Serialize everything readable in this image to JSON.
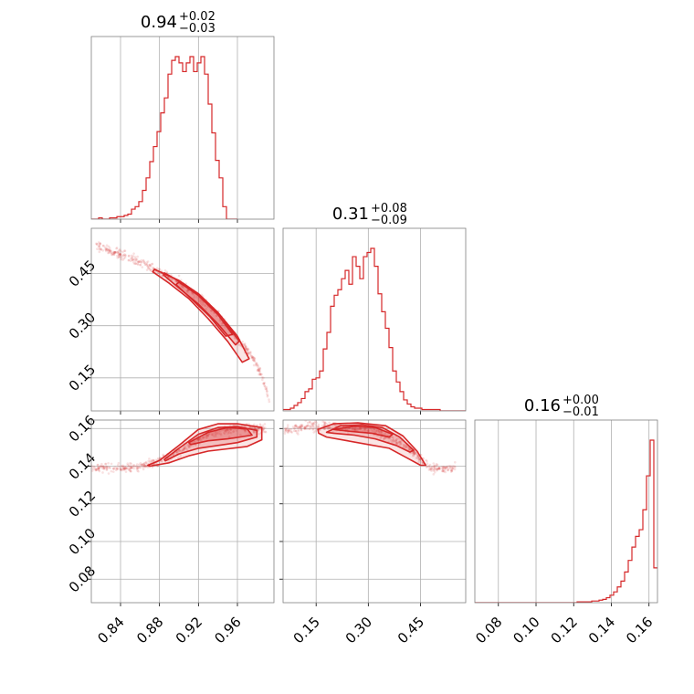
{
  "colors": {
    "series": "#d62728",
    "grid": "#b0b0b0",
    "frame": "#808080"
  },
  "chart_data": {
    "type": "corner",
    "grid": true,
    "parameters": [
      {
        "title": {
          "value": "0.94",
          "plus": "+0.02",
          "minus": "−0.03"
        },
        "range": [
          0.81,
          0.9975
        ],
        "ticks": [
          0.84,
          0.88,
          0.92,
          0.96
        ],
        "tick_labels": [
          "0.84",
          "0.88",
          "0.92",
          "0.96"
        ],
        "histogram": {
          "bin_start": 0.81,
          "bin_width": 0.00375,
          "counts": [
            0,
            0,
            1,
            0,
            0,
            1,
            1,
            2,
            2,
            3,
            4,
            8,
            10,
            14,
            23,
            33,
            46,
            58,
            70,
            85,
            97,
            116,
            127,
            130,
            125,
            118,
            125,
            130,
            118,
            125,
            130,
            116,
            92,
            69,
            47,
            33,
            10,
            0,
            0,
            0
          ]
        }
      },
      {
        "title": {
          "value": "0.31",
          "plus": "+0.08",
          "minus": "−0.09"
        },
        "range": [
          0.055,
          0.58
        ],
        "ticks": [
          0.15,
          0.3,
          0.45
        ],
        "tick_labels": [
          "0.15",
          "0.30",
          "0.45"
        ],
        "histogram": {
          "bin_start": 0.055,
          "bin_width": 0.0105,
          "counts": [
            1,
            1,
            2,
            4,
            6,
            9,
            14,
            16,
            23,
            24,
            29,
            45,
            57,
            76,
            84,
            88,
            96,
            102,
            92,
            112,
            105,
            96,
            112,
            115,
            118,
            105,
            85,
            72,
            60,
            46,
            29,
            21,
            14,
            8,
            5,
            3,
            2,
            2,
            1,
            1,
            1,
            1,
            1,
            0,
            0,
            0,
            0,
            0,
            0,
            0
          ]
        }
      },
      {
        "title": {
          "value": "0.16",
          "plus": "+0.00",
          "minus": "−0.01"
        },
        "range": [
          0.0675,
          0.1645
        ],
        "ticks": [
          0.08,
          0.1,
          0.12,
          0.14,
          0.16
        ],
        "tick_labels": [
          "0.08",
          "0.10",
          "0.12",
          "0.14",
          "0.16"
        ],
        "histogram": {
          "bin_start": 0.0675,
          "bin_width": 0.00194,
          "counts": [
            0,
            0,
            0,
            0,
            0,
            0,
            0,
            0,
            0,
            0,
            0,
            0,
            0,
            0,
            0,
            0,
            0,
            0,
            0,
            0,
            0,
            0,
            0,
            0,
            0,
            0,
            0,
            0,
            1,
            1,
            1,
            1,
            2,
            2,
            3,
            4,
            6,
            9,
            13,
            19,
            26,
            37,
            51,
            67,
            80,
            88,
            112,
            153,
            196,
            42
          ]
        }
      }
    ],
    "scatter_2d": [
      {
        "x_param": 0,
        "y_param": 1,
        "curve": [
          [
            0.815,
            0.53
          ],
          [
            0.85,
            0.495
          ],
          [
            0.88,
            0.455
          ],
          [
            0.9,
            0.425
          ],
          [
            0.92,
            0.385
          ],
          [
            0.94,
            0.33
          ],
          [
            0.96,
            0.265
          ],
          [
            0.975,
            0.21
          ],
          [
            0.985,
            0.155
          ],
          [
            0.993,
            0.08
          ]
        ],
        "contours": [
          [
            [
              0.875,
              0.462
            ],
            [
              0.9,
              0.43
            ],
            [
              0.92,
              0.392
            ],
            [
              0.94,
              0.338
            ],
            [
              0.96,
              0.27
            ],
            [
              0.972,
              0.205
            ],
            [
              0.965,
              0.195
            ],
            [
              0.95,
              0.255
            ],
            [
              0.93,
              0.32
            ],
            [
              0.91,
              0.378
            ],
            [
              0.89,
              0.422
            ],
            [
              0.873,
              0.455
            ]
          ],
          [
            [
              0.885,
              0.452
            ],
            [
              0.905,
              0.42
            ],
            [
              0.925,
              0.378
            ],
            [
              0.945,
              0.32
            ],
            [
              0.962,
              0.255
            ],
            [
              0.958,
              0.245
            ],
            [
              0.94,
              0.305
            ],
            [
              0.92,
              0.362
            ],
            [
              0.9,
              0.408
            ],
            [
              0.884,
              0.446
            ]
          ],
          [
            [
              0.9,
              0.425
            ],
            [
              0.92,
              0.387
            ],
            [
              0.94,
              0.332
            ],
            [
              0.955,
              0.275
            ],
            [
              0.948,
              0.27
            ],
            [
              0.932,
              0.325
            ],
            [
              0.913,
              0.376
            ],
            [
              0.897,
              0.418
            ]
          ]
        ]
      },
      {
        "x_param": 0,
        "y_param": 2,
        "curve": [
          [
            0.8,
            0.1388
          ],
          [
            0.85,
            0.1392
          ],
          [
            0.87,
            0.1405
          ],
          [
            0.9,
            0.148
          ],
          [
            0.93,
            0.157
          ],
          [
            0.96,
            0.1605
          ],
          [
            0.99,
            0.1595
          ]
        ],
        "contours": [
          [
            [
              0.868,
              0.1405
            ],
            [
              0.88,
              0.143
            ],
            [
              0.9,
              0.151
            ],
            [
              0.92,
              0.1595
            ],
            [
              0.94,
              0.1625
            ],
            [
              0.96,
              0.1625
            ],
            [
              0.985,
              0.1605
            ],
            [
              0.985,
              0.154
            ],
            [
              0.97,
              0.1505
            ],
            [
              0.95,
              0.1492
            ],
            [
              0.93,
              0.148
            ],
            [
              0.91,
              0.1455
            ],
            [
              0.89,
              0.1418
            ],
            [
              0.87,
              0.14
            ]
          ],
          [
            [
              0.885,
              0.1435
            ],
            [
              0.9,
              0.1495
            ],
            [
              0.92,
              0.157
            ],
            [
              0.94,
              0.1605
            ],
            [
              0.96,
              0.161
            ],
            [
              0.98,
              0.159
            ],
            [
              0.98,
              0.1555
            ],
            [
              0.96,
              0.1525
            ],
            [
              0.94,
              0.151
            ],
            [
              0.92,
              0.1495
            ],
            [
              0.9,
              0.1465
            ],
            [
              0.886,
              0.1428
            ]
          ],
          [
            [
              0.91,
              0.1525
            ],
            [
              0.93,
              0.158
            ],
            [
              0.95,
              0.1605
            ],
            [
              0.97,
              0.1598
            ],
            [
              0.975,
              0.1565
            ],
            [
              0.95,
              0.1545
            ],
            [
              0.93,
              0.1535
            ],
            [
              0.912,
              0.1515
            ]
          ]
        ]
      },
      {
        "x_param": 1,
        "y_param": 2,
        "curve": [
          [
            0.06,
            0.1595
          ],
          [
            0.12,
            0.1612
          ],
          [
            0.2,
            0.161
          ],
          [
            0.3,
            0.1595
          ],
          [
            0.4,
            0.152
          ],
          [
            0.45,
            0.144
          ],
          [
            0.48,
            0.1392
          ],
          [
            0.55,
            0.1388
          ]
        ],
        "contours": [
          [
            [
              0.155,
              0.1595
            ],
            [
              0.2,
              0.1625
            ],
            [
              0.27,
              0.163
            ],
            [
              0.35,
              0.1615
            ],
            [
              0.4,
              0.156
            ],
            [
              0.44,
              0.148
            ],
            [
              0.465,
              0.1405
            ],
            [
              0.45,
              0.1405
            ],
            [
              0.41,
              0.1445
            ],
            [
              0.36,
              0.1495
            ],
            [
              0.3,
              0.1515
            ],
            [
              0.24,
              0.1535
            ],
            [
              0.18,
              0.1555
            ],
            [
              0.157,
              0.1575
            ]
          ],
          [
            [
              0.18,
              0.158
            ],
            [
              0.22,
              0.1615
            ],
            [
              0.28,
              0.162
            ],
            [
              0.34,
              0.1605
            ],
            [
              0.39,
              0.1555
            ],
            [
              0.43,
              0.1485
            ],
            [
              0.42,
              0.1475
            ],
            [
              0.38,
              0.151
            ],
            [
              0.32,
              0.1545
            ],
            [
              0.26,
              0.1565
            ],
            [
              0.2,
              0.1575
            ]
          ],
          [
            [
              0.2,
              0.1595
            ],
            [
              0.26,
              0.1612
            ],
            [
              0.32,
              0.1605
            ],
            [
              0.37,
              0.157
            ],
            [
              0.36,
              0.1555
            ],
            [
              0.31,
              0.1575
            ],
            [
              0.25,
              0.1585
            ]
          ]
        ]
      }
    ]
  }
}
